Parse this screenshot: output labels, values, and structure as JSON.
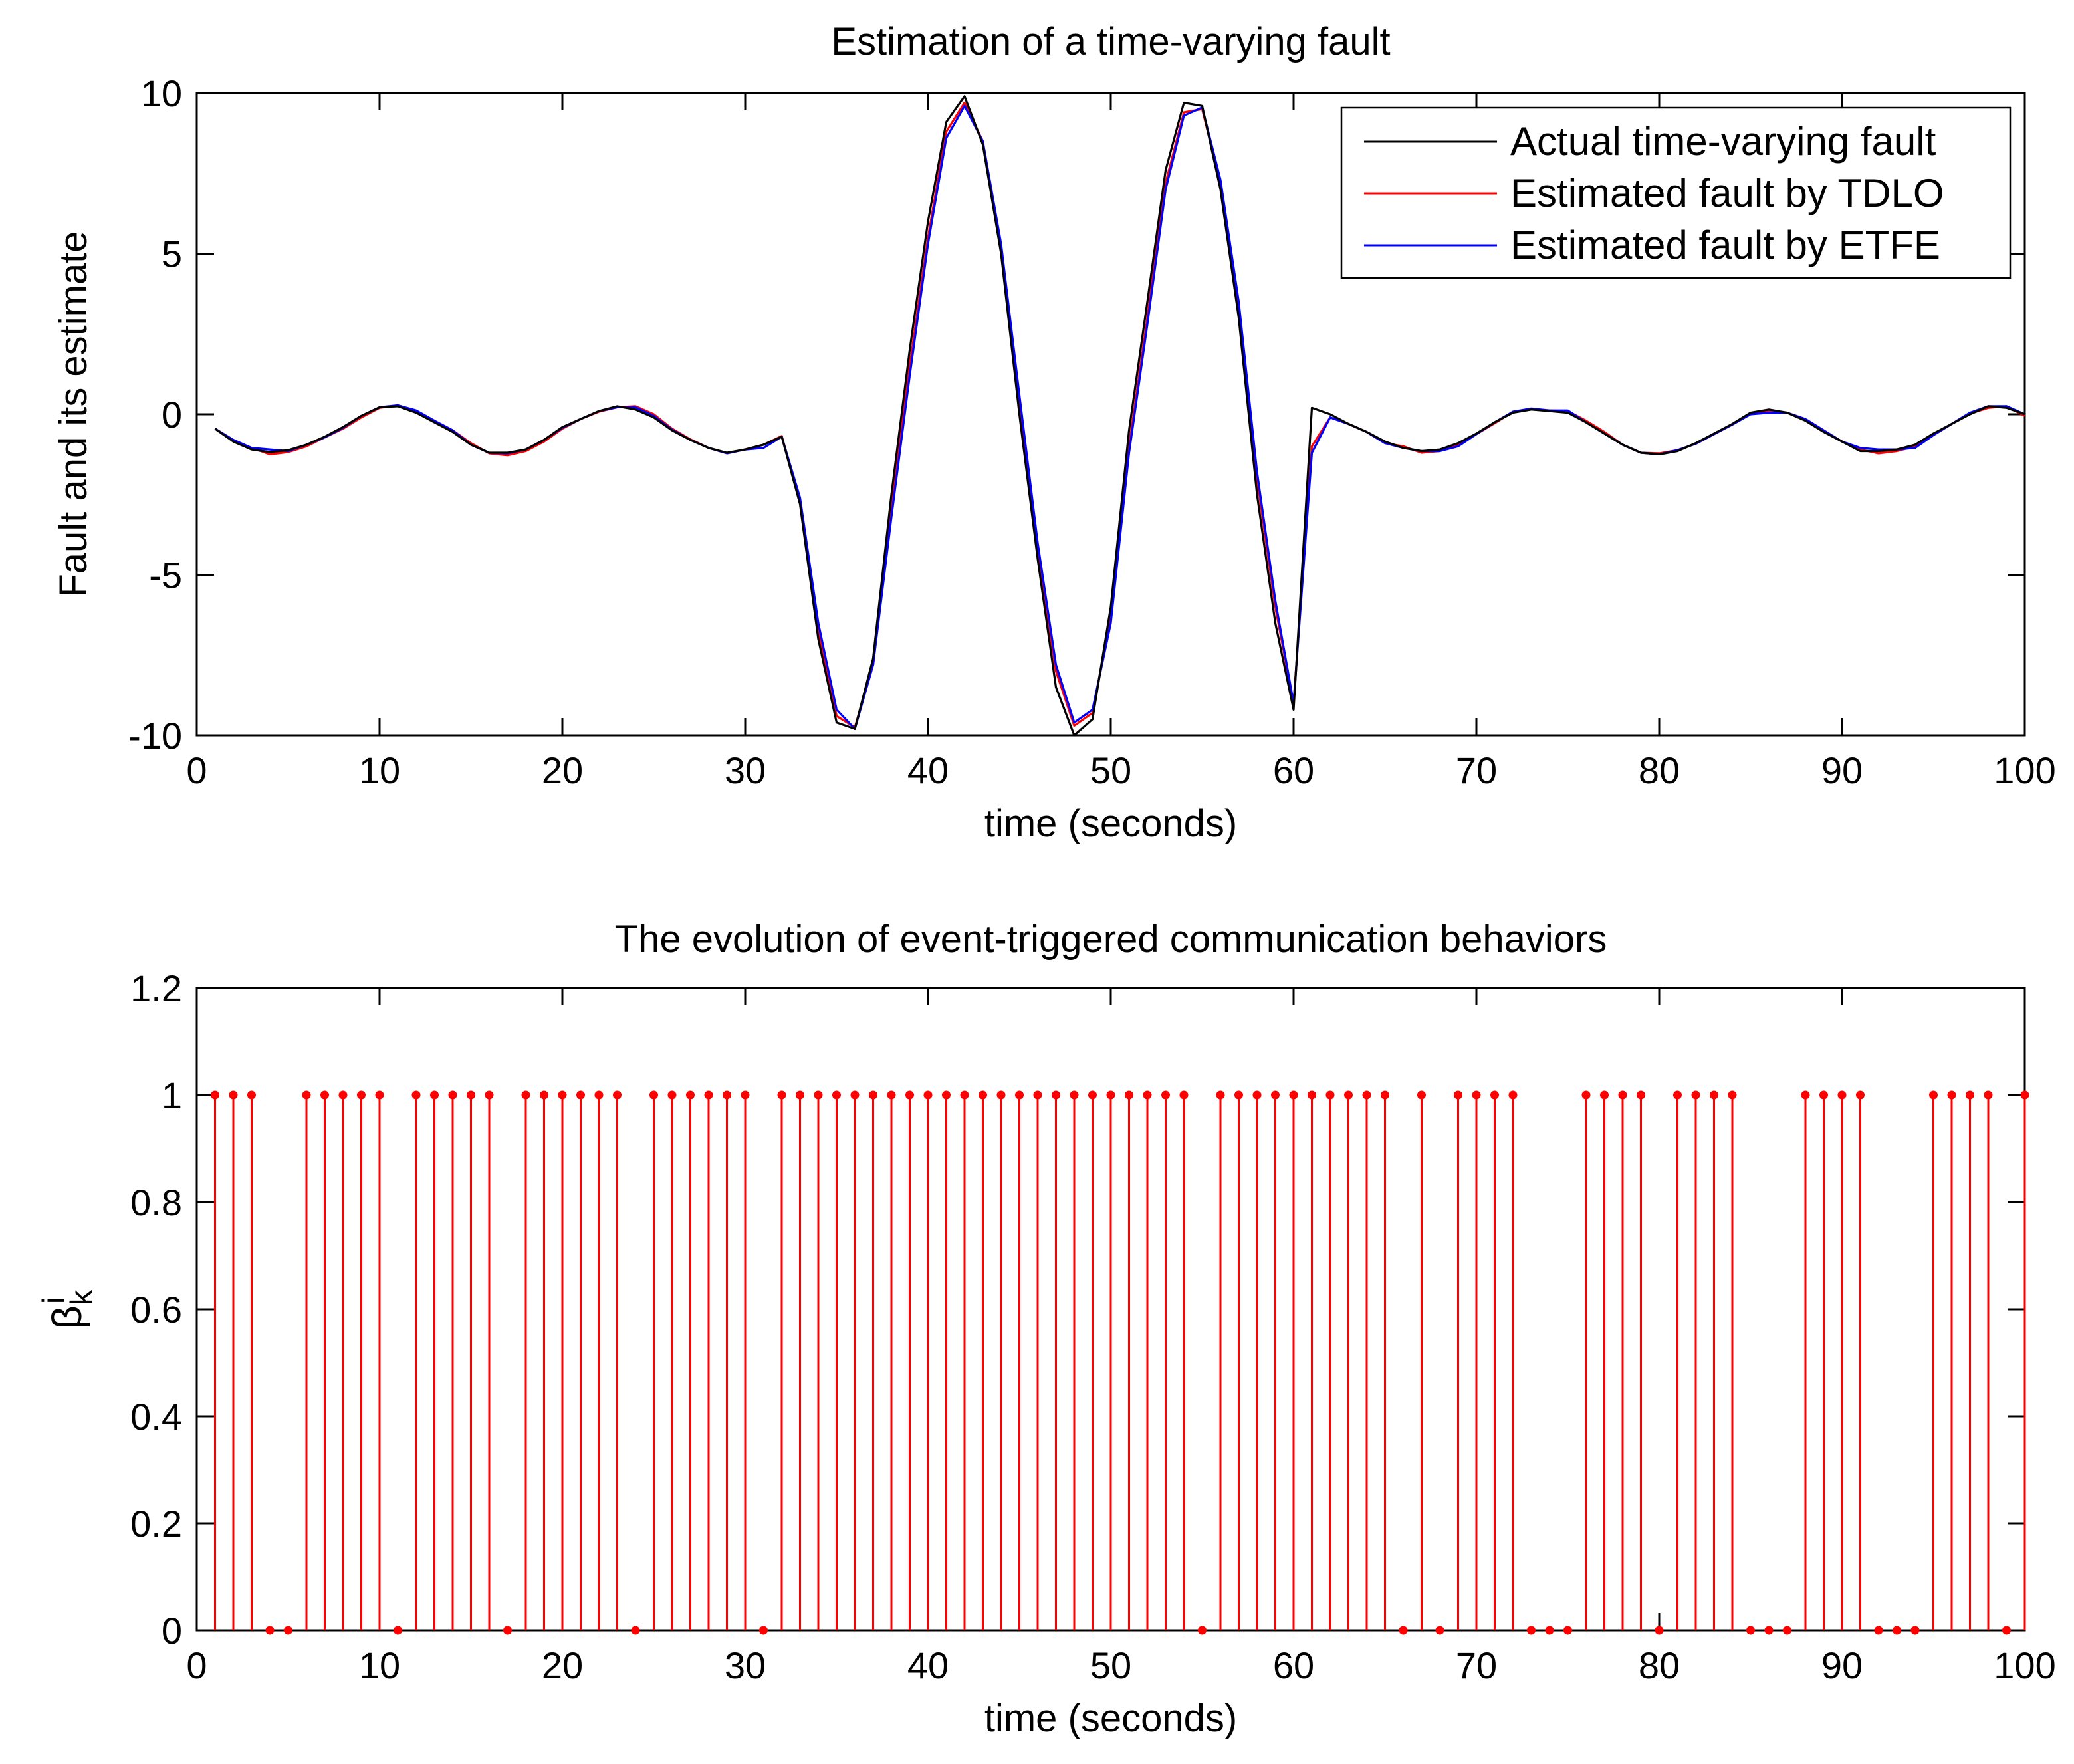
{
  "chart_data": [
    {
      "type": "line",
      "title": "Estimation of a time-varying fault",
      "xlabel": "time (seconds)",
      "ylabel": "Fault and its estimate",
      "xlim": [
        0,
        100
      ],
      "ylim": [
        -10,
        10
      ],
      "xticks": [
        "0",
        "10",
        "20",
        "30",
        "40",
        "50",
        "60",
        "70",
        "80",
        "90",
        "100"
      ],
      "yticks": [
        "-10",
        "-5",
        "0",
        "5",
        "10"
      ],
      "legend_position": "top-right",
      "x": [
        1,
        2,
        3,
        4,
        5,
        6,
        7,
        8,
        9,
        10,
        11,
        12,
        13,
        14,
        15,
        16,
        17,
        18,
        19,
        20,
        21,
        22,
        23,
        24,
        25,
        26,
        27,
        28,
        29,
        30,
        31,
        32,
        33,
        34,
        35,
        36,
        37,
        38,
        39,
        40,
        41,
        42,
        43,
        44,
        45,
        46,
        47,
        48,
        49,
        50,
        51,
        52,
        53,
        54,
        55,
        56,
        57,
        58,
        59,
        60,
        61,
        62,
        63,
        64,
        65,
        66,
        67,
        68,
        69,
        70,
        71,
        72,
        73,
        74,
        75,
        76,
        77,
        78,
        79,
        80,
        81,
        82,
        83,
        84,
        85,
        86,
        87,
        88,
        89,
        90,
        91,
        92,
        93,
        94,
        95,
        96,
        97,
        98,
        99,
        100
      ],
      "series": [
        {
          "name": "Actual time-varying fault",
          "color": "#000000",
          "values": [
            -0.45,
            -0.85,
            -1.1,
            -1.18,
            -1.12,
            -0.95,
            -0.7,
            -0.4,
            -0.05,
            0.22,
            0.25,
            0.05,
            -0.25,
            -0.55,
            -0.95,
            -1.2,
            -1.2,
            -1.1,
            -0.8,
            -0.4,
            -0.15,
            0.1,
            0.25,
            0.15,
            -0.1,
            -0.5,
            -0.8,
            -1.05,
            -1.2,
            -1.1,
            -0.95,
            -0.7,
            -2.8,
            -7.0,
            -9.6,
            -9.8,
            -7.6,
            -2.5,
            2.0,
            6.0,
            9.1,
            9.9,
            8.4,
            5.0,
            0.0,
            -4.5,
            -8.5,
            -10.0,
            -9.5,
            -6.0,
            -0.5,
            3.5,
            7.6,
            9.7,
            9.6,
            7.0,
            3.0,
            -2.5,
            -6.5,
            -9.2,
            0.2,
            0.0,
            -0.3,
            -0.55,
            -0.85,
            -1.05,
            -1.15,
            -1.1,
            -0.9,
            -0.6,
            -0.25,
            0.05,
            0.15,
            0.1,
            0.05,
            -0.25,
            -0.6,
            -0.95,
            -1.2,
            -1.25,
            -1.15,
            -0.9,
            -0.6,
            -0.3,
            0.05,
            0.15,
            0.05,
            -0.2,
            -0.55,
            -0.85,
            -1.15,
            -1.15,
            -1.1,
            -0.95,
            -0.6,
            -0.3,
            0.0,
            0.25,
            0.2,
            0.0
          ]
        },
        {
          "name": "Estimated fault by TDLO",
          "color": "#ff0000",
          "values": [
            -0.45,
            -0.8,
            -1.05,
            -1.25,
            -1.18,
            -1.0,
            -0.72,
            -0.45,
            -0.1,
            0.2,
            0.28,
            0.1,
            -0.2,
            -0.5,
            -0.9,
            -1.22,
            -1.28,
            -1.15,
            -0.85,
            -0.45,
            -0.15,
            0.08,
            0.22,
            0.25,
            0.0,
            -0.45,
            -0.78,
            -1.05,
            -1.22,
            -1.1,
            -0.95,
            -0.68,
            -2.7,
            -6.8,
            -9.4,
            -9.75,
            -7.8,
            -3.0,
            1.5,
            5.5,
            8.8,
            9.7,
            8.5,
            5.2,
            0.5,
            -4.2,
            -8.0,
            -9.7,
            -9.3,
            -6.3,
            -1.0,
            3.0,
            7.2,
            9.4,
            9.5,
            7.2,
            3.3,
            -2.0,
            -6.0,
            -9.0,
            -1.0,
            -0.1,
            -0.3,
            -0.55,
            -0.9,
            -1.0,
            -1.2,
            -1.15,
            -0.95,
            -0.62,
            -0.28,
            0.08,
            0.15,
            0.12,
            0.1,
            -0.2,
            -0.55,
            -0.95,
            -1.2,
            -1.22,
            -1.12,
            -0.92,
            -0.62,
            -0.32,
            0.02,
            0.1,
            0.05,
            -0.15,
            -0.5,
            -0.85,
            -1.1,
            -1.22,
            -1.15,
            -1.0,
            -0.65,
            -0.3,
            0.02,
            0.2,
            0.25,
            -0.05
          ]
        },
        {
          "name": "Estimated fault by ETFE",
          "color": "#0000ff",
          "values": [
            -0.45,
            -0.8,
            -1.05,
            -1.1,
            -1.15,
            -0.95,
            -0.72,
            -0.42,
            -0.05,
            0.22,
            0.28,
            0.12,
            -0.2,
            -0.5,
            -0.95,
            -1.2,
            -1.22,
            -1.1,
            -0.8,
            -0.42,
            -0.15,
            0.1,
            0.22,
            0.22,
            -0.05,
            -0.48,
            -0.8,
            -1.05,
            -1.22,
            -1.1,
            -1.05,
            -0.7,
            -2.6,
            -6.5,
            -9.2,
            -9.8,
            -7.8,
            -3.2,
            1.2,
            5.3,
            8.6,
            9.6,
            8.5,
            5.3,
            0.6,
            -4.0,
            -7.8,
            -9.6,
            -9.2,
            -6.5,
            -1.2,
            2.8,
            7.0,
            9.3,
            9.55,
            7.3,
            3.5,
            -1.8,
            -5.8,
            -9.0,
            -1.2,
            -0.1,
            -0.3,
            -0.55,
            -0.9,
            -1.05,
            -1.15,
            -1.15,
            -1.0,
            -0.62,
            -0.25,
            0.08,
            0.18,
            0.12,
            0.12,
            -0.25,
            -0.6,
            -0.95,
            -1.2,
            -1.25,
            -1.12,
            -0.92,
            -0.62,
            -0.32,
            0.0,
            0.05,
            0.05,
            -0.15,
            -0.5,
            -0.85,
            -1.05,
            -1.1,
            -1.1,
            -1.05,
            -0.65,
            -0.3,
            0.05,
            0.25,
            0.25,
            0.0
          ]
        }
      ]
    },
    {
      "type": "stem",
      "title": "The evolution of event-triggered communication behaviors",
      "xlabel": "time (seconds)",
      "ylabel_base": "β",
      "ylabel_sub": "k",
      "ylabel_sup": "i",
      "xlim": [
        0,
        100
      ],
      "ylim": [
        0,
        1.2
      ],
      "xticks": [
        "0",
        "10",
        "20",
        "30",
        "40",
        "50",
        "60",
        "70",
        "80",
        "90",
        "100"
      ],
      "yticks": [
        "0",
        "0.2",
        "0.4",
        "0.6",
        "0.8",
        "1",
        "1.2"
      ],
      "color": "#ff0000",
      "x": [
        1,
        2,
        3,
        4,
        5,
        6,
        7,
        8,
        9,
        10,
        11,
        12,
        13,
        14,
        15,
        16,
        17,
        18,
        19,
        20,
        21,
        22,
        23,
        24,
        25,
        26,
        27,
        28,
        29,
        30,
        31,
        32,
        33,
        34,
        35,
        36,
        37,
        38,
        39,
        40,
        41,
        42,
        43,
        44,
        45,
        46,
        47,
        48,
        49,
        50,
        51,
        52,
        53,
        54,
        55,
        56,
        57,
        58,
        59,
        60,
        61,
        62,
        63,
        64,
        65,
        66,
        67,
        68,
        69,
        70,
        71,
        72,
        73,
        74,
        75,
        76,
        77,
        78,
        79,
        80,
        81,
        82,
        83,
        84,
        85,
        86,
        87,
        88,
        89,
        90,
        91,
        92,
        93,
        94,
        95,
        96,
        97,
        98,
        99,
        100
      ],
      "values": [
        1,
        1,
        1,
        0,
        0,
        1,
        1,
        1,
        1,
        1,
        0,
        1,
        1,
        1,
        1,
        1,
        0,
        1,
        1,
        1,
        1,
        1,
        1,
        0,
        1,
        1,
        1,
        1,
        1,
        1,
        0,
        1,
        1,
        1,
        1,
        1,
        1,
        1,
        1,
        1,
        1,
        1,
        1,
        1,
        1,
        1,
        1,
        1,
        1,
        1,
        1,
        1,
        1,
        1,
        0,
        1,
        1,
        1,
        1,
        1,
        1,
        1,
        1,
        1,
        1,
        0,
        1,
        0,
        1,
        1,
        1,
        1,
        0,
        0,
        0,
        1,
        1,
        1,
        1,
        0,
        1,
        1,
        1,
        1,
        0,
        0,
        0,
        1,
        1,
        1,
        1,
        0,
        0,
        0,
        1,
        1,
        1,
        1,
        0,
        1
      ]
    }
  ]
}
